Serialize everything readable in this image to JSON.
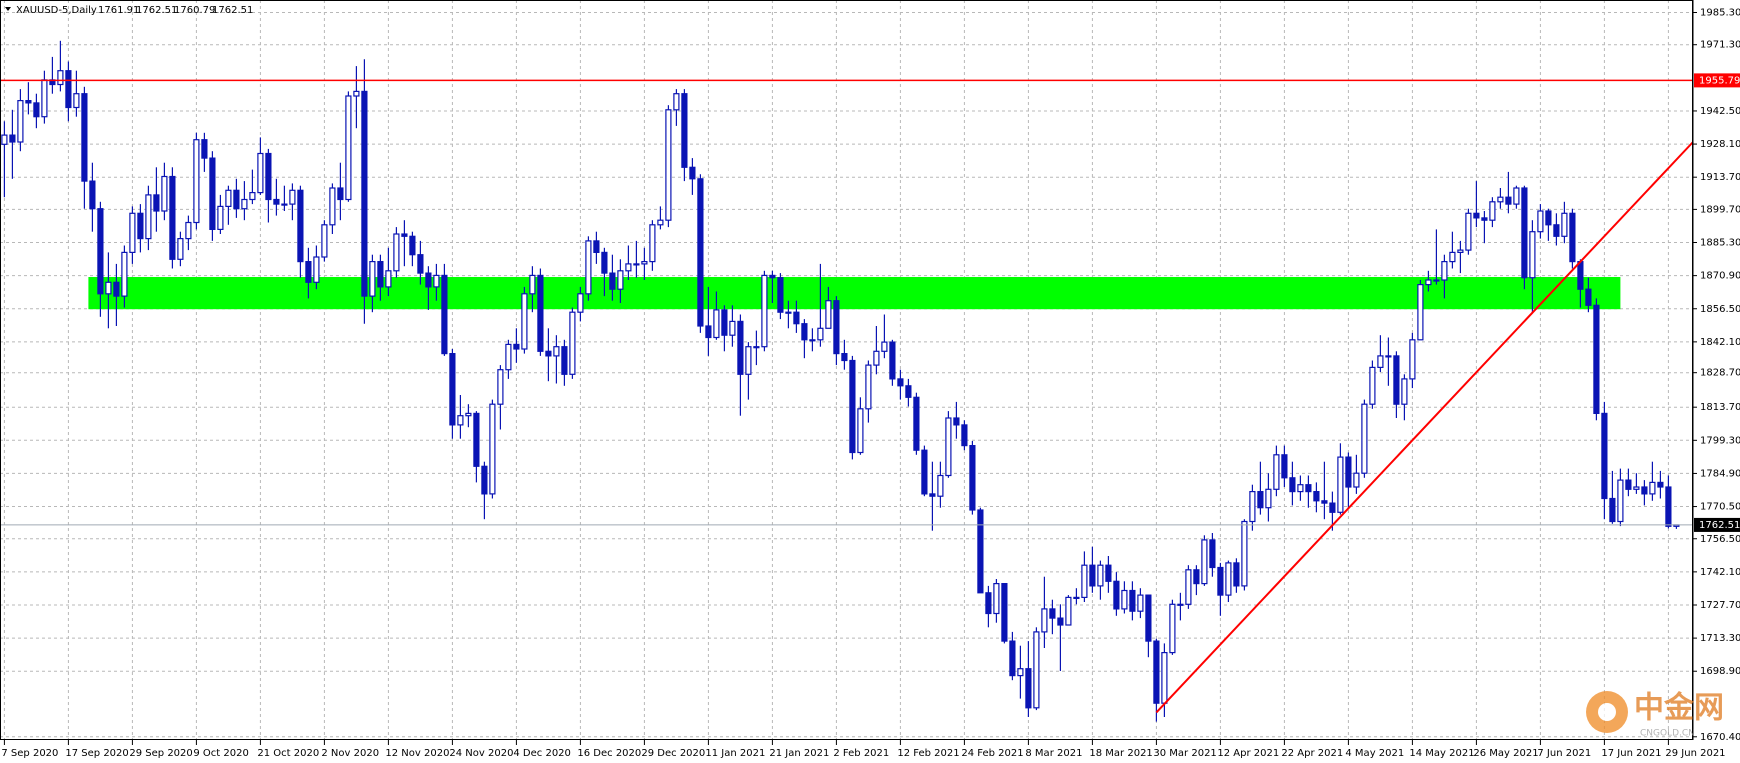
{
  "chart_data": {
    "type": "candlestick",
    "title": "XAUUSD-5,Daily",
    "categories": [
      "7 Sep 2020",
      null,
      null,
      null,
      null,
      null,
      null,
      null,
      "17 Sep 2020",
      null,
      null,
      null,
      null,
      null,
      null,
      null,
      "29 Sep 2020",
      null,
      null,
      null,
      null,
      null,
      null,
      null,
      "9 Oct 2020",
      null,
      null,
      null,
      null,
      null,
      null,
      null,
      "21 Oct 2020",
      null,
      null,
      null,
      null,
      null,
      null,
      null,
      "2 Nov 2020",
      null,
      null,
      null,
      null,
      null,
      null,
      null,
      "12 Nov 2020",
      null,
      null,
      null,
      null,
      null,
      null,
      null,
      "24 Nov 2020",
      null,
      null,
      null,
      null,
      null,
      null,
      null,
      "4 Dec 2020",
      null,
      null,
      null,
      null,
      null,
      null,
      null,
      "16 Dec 2020",
      null,
      null,
      null,
      null,
      null,
      null,
      null,
      "29 Dec 2020",
      null,
      null,
      null,
      null,
      null,
      null,
      null,
      "11 Jan 2021",
      null,
      null,
      null,
      null,
      null,
      null,
      null,
      "21 Jan 2021",
      null,
      null,
      null,
      null,
      null,
      null,
      null,
      "2 Feb 2021",
      null,
      null,
      null,
      null,
      null,
      null,
      null,
      "12 Feb 2021",
      null,
      null,
      null,
      null,
      null,
      null,
      null,
      "24 Feb 2021",
      null,
      null,
      null,
      null,
      null,
      null,
      null,
      "8 Mar 2021",
      null,
      null,
      null,
      null,
      null,
      null,
      null,
      "18 Mar 2021",
      null,
      null,
      null,
      null,
      null,
      null,
      null,
      "30 Mar 2021",
      null,
      null,
      null,
      null,
      null,
      null,
      null,
      "12 Apr 2021",
      null,
      null,
      null,
      null,
      null,
      null,
      null,
      "22 Apr 2021",
      null,
      null,
      null,
      null,
      null,
      null,
      null,
      "4 May 2021",
      null,
      null,
      null,
      null,
      null,
      null,
      null,
      "14 May 2021",
      null,
      null,
      null,
      null,
      null,
      null,
      null,
      "26 May 2021",
      null,
      null,
      null,
      null,
      null,
      null,
      null,
      "7 Jun 2021",
      null,
      null,
      null,
      null,
      null,
      null,
      null,
      "17 Jun 2021",
      null,
      null,
      null,
      null,
      null,
      null,
      null,
      "29 Jun 2021",
      null
    ],
    "open": [
      1928,
      1932,
      1929,
      1947,
      1946,
      1940,
      1956,
      1954,
      1960,
      1944,
      1950,
      1912,
      1900,
      1863,
      1868,
      1862,
      1881,
      1898,
      1887,
      1906,
      1899,
      1914,
      1878,
      1887,
      1894,
      1930,
      1922,
      1891,
      1901,
      1908,
      1900,
      1904,
      1907,
      1924,
      1904,
      1902,
      1902,
      1908,
      1877,
      1868,
      1879,
      1893,
      1909,
      1904,
      1949,
      1951,
      1862,
      1877,
      1866,
      1873,
      1889,
      1888,
      1880,
      1872,
      1866,
      1871,
      1837,
      1806,
      1810,
      1811,
      1788,
      1776,
      1815,
      1830,
      1841,
      1839,
      1863,
      1871,
      1838,
      1836,
      1840,
      1828,
      1855,
      1863,
      1886,
      1881,
      1872,
      1865,
      1873,
      1876,
      1876,
      1877,
      1893,
      1895,
      1943,
      1950,
      1918,
      1913,
      1849,
      1844,
      1856,
      1845,
      1851,
      1828,
      1840,
      1840,
      1871,
      1870,
      1855,
      1855,
      1850,
      1843,
      1843,
      1848,
      1860,
      1837,
      1834,
      1794,
      1813,
      1832,
      1838,
      1842,
      1826,
      1823,
      1818,
      1795,
      1776,
      1775,
      1784,
      1809,
      1806,
      1797,
      1769,
      1733,
      1724,
      1737,
      1712,
      1697,
      1700,
      1683,
      1716,
      1726,
      1722,
      1719,
      1731,
      1731,
      1745,
      1736,
      1745,
      1738,
      1726,
      1734,
      1725,
      1732,
      1712,
      1685,
      1707,
      1728,
      1728,
      1743,
      1737,
      1756,
      1744,
      1732,
      1746,
      1736,
      1764,
      1777,
      1770,
      1778,
      1793,
      1783,
      1777,
      1780,
      1777,
      1773,
      1772,
      1768,
      1792,
      1779,
      1785,
      1815,
      1831,
      1836,
      1836,
      1815,
      1826,
      1843,
      1867,
      1869,
      1869,
      1877,
      1881,
      1882,
      1898,
      1896,
      1895,
      1903,
      1905,
      1902,
      1909,
      1870,
      1890,
      1899,
      1893,
      1888,
      1898,
      1877,
      1865,
      1858,
      1811,
      1774,
      1764,
      1782,
      1778,
      1779,
      1776,
      1781,
      1779,
      1761.91
    ],
    "high": [
      1938,
      1943,
      1952,
      1955,
      1950,
      1960,
      1966,
      1973,
      1964,
      1960,
      1953,
      1920,
      1903,
      1881,
      1876,
      1884,
      1901,
      1902,
      1910,
      1918,
      1920,
      1918,
      1890,
      1897,
      1933,
      1933,
      1925,
      1906,
      1910,
      1913,
      1912,
      1917,
      1931,
      1926,
      1913,
      1910,
      1911,
      1910,
      1883,
      1884,
      1895,
      1911,
      1920,
      1951,
      1962,
      1965,
      1880,
      1880,
      1883,
      1892,
      1895,
      1890,
      1886,
      1875,
      1876,
      1876,
      1839,
      1819,
      1815,
      1812,
      1790,
      1817,
      1832,
      1843,
      1848,
      1866,
      1875,
      1874,
      1848,
      1845,
      1843,
      1857,
      1866,
      1888,
      1890,
      1883,
      1880,
      1878,
      1884,
      1886,
      1883,
      1895,
      1901,
      1945,
      1952,
      1952,
      1922,
      1915,
      1866,
      1864,
      1858,
      1858,
      1854,
      1842,
      1847,
      1873,
      1873,
      1872,
      1860,
      1860,
      1852,
      1848,
      1876,
      1866,
      1862,
      1843,
      1836,
      1818,
      1834,
      1849,
      1854,
      1843,
      1830,
      1826,
      1820,
      1797,
      1790,
      1790,
      1812,
      1816,
      1808,
      1799,
      1770,
      1736,
      1739,
      1737,
      1716,
      1710,
      1712,
      1718,
      1740,
      1730,
      1728,
      1732,
      1735,
      1751,
      1753,
      1747,
      1749,
      1742,
      1738,
      1738,
      1735,
      1732,
      1713,
      1711,
      1730,
      1733,
      1745,
      1745,
      1758,
      1759,
      1746,
      1747,
      1748,
      1765,
      1780,
      1790,
      1785,
      1797,
      1797,
      1790,
      1784,
      1784,
      1781,
      1790,
      1777,
      1798,
      1794,
      1793,
      1817,
      1834,
      1845,
      1844,
      1838,
      1828,
      1846,
      1869,
      1873,
      1891,
      1880,
      1890,
      1886,
      1900,
      1912,
      1899,
      1905,
      1909,
      1916,
      1910,
      1910,
      1895,
      1902,
      1900,
      1898,
      1903,
      1900,
      1878,
      1870,
      1861,
      1816,
      1786,
      1787,
      1787,
      1785,
      1782,
      1790,
      1786,
      1784,
      1762.51
    ],
    "low": [
      1905,
      1913,
      1925,
      1941,
      1935,
      1937,
      1950,
      1951,
      1938,
      1940,
      1900,
      1890,
      1853,
      1848,
      1849,
      1857,
      1876,
      1881,
      1882,
      1890,
      1895,
      1874,
      1875,
      1882,
      1891,
      1916,
      1886,
      1889,
      1893,
      1896,
      1895,
      1902,
      1906,
      1894,
      1897,
      1899,
      1895,
      1870,
      1861,
      1865,
      1877,
      1889,
      1895,
      1903,
      1935,
      1850,
      1855,
      1860,
      1862,
      1870,
      1875,
      1875,
      1867,
      1856,
      1860,
      1836,
      1800,
      1800,
      1805,
      1781,
      1765,
      1774,
      1804,
      1826,
      1833,
      1837,
      1855,
      1836,
      1825,
      1824,
      1823,
      1826,
      1851,
      1860,
      1876,
      1862,
      1860,
      1859,
      1869,
      1870,
      1869,
      1873,
      1891,
      1892,
      1936,
      1912,
      1906,
      1846,
      1836,
      1843,
      1838,
      1840,
      1810,
      1817,
      1832,
      1838,
      1859,
      1852,
      1848,
      1846,
      1835,
      1838,
      1840,
      1848,
      1832,
      1830,
      1791,
      1793,
      1807,
      1828,
      1835,
      1823,
      1817,
      1814,
      1793,
      1775,
      1760,
      1770,
      1783,
      1800,
      1795,
      1767,
      1733,
      1718,
      1720,
      1711,
      1695,
      1687,
      1679,
      1682,
      1709,
      1715,
      1699,
      1720,
      1728,
      1729,
      1733,
      1730,
      1733,
      1723,
      1724,
      1721,
      1722,
      1705,
      1677,
      1679,
      1706,
      1721,
      1726,
      1732,
      1736,
      1740,
      1723,
      1729,
      1733,
      1734,
      1760,
      1767,
      1764,
      1775,
      1779,
      1771,
      1773,
      1770,
      1768,
      1765,
      1760,
      1767,
      1770,
      1776,
      1783,
      1813,
      1829,
      1823,
      1809,
      1808,
      1822,
      1843,
      1864,
      1867,
      1861,
      1874,
      1872,
      1880,
      1892,
      1885,
      1892,
      1900,
      1898,
      1900,
      1865,
      1855,
      1887,
      1886,
      1884,
      1885,
      1874,
      1857,
      1855,
      1808,
      1765,
      1763,
      1762,
      1775,
      1776,
      1771,
      1773,
      1774,
      1761,
      1760.79
    ],
    "close": [
      1932,
      1929,
      1947,
      1946,
      1940,
      1956,
      1954,
      1960,
      1944,
      1950,
      1912,
      1900,
      1863,
      1868,
      1862,
      1881,
      1898,
      1887,
      1906,
      1899,
      1914,
      1878,
      1887,
      1894,
      1930,
      1922,
      1891,
      1901,
      1908,
      1900,
      1904,
      1907,
      1924,
      1904,
      1902,
      1902,
      1908,
      1877,
      1868,
      1879,
      1893,
      1909,
      1904,
      1949,
      1951,
      1862,
      1877,
      1866,
      1873,
      1889,
      1888,
      1880,
      1872,
      1866,
      1871,
      1837,
      1806,
      1810,
      1811,
      1788,
      1776,
      1815,
      1830,
      1841,
      1839,
      1863,
      1871,
      1838,
      1836,
      1840,
      1828,
      1855,
      1863,
      1886,
      1881,
      1872,
      1865,
      1873,
      1876,
      1876,
      1877,
      1893,
      1895,
      1943,
      1950,
      1918,
      1913,
      1849,
      1844,
      1856,
      1845,
      1851,
      1828,
      1840,
      1840,
      1871,
      1870,
      1855,
      1855,
      1850,
      1843,
      1843,
      1848,
      1860,
      1837,
      1834,
      1794,
      1813,
      1832,
      1838,
      1842,
      1826,
      1823,
      1818,
      1795,
      1776,
      1775,
      1784,
      1809,
      1806,
      1797,
      1769,
      1733,
      1724,
      1737,
      1712,
      1697,
      1700,
      1683,
      1716,
      1726,
      1722,
      1719,
      1731,
      1731,
      1745,
      1736,
      1745,
      1738,
      1726,
      1734,
      1725,
      1732,
      1712,
      1685,
      1707,
      1728,
      1728,
      1743,
      1737,
      1756,
      1744,
      1732,
      1746,
      1736,
      1764,
      1777,
      1770,
      1778,
      1793,
      1783,
      1777,
      1780,
      1777,
      1773,
      1772,
      1768,
      1792,
      1779,
      1785,
      1815,
      1831,
      1836,
      1836,
      1815,
      1826,
      1843,
      1867,
      1869,
      1869,
      1877,
      1881,
      1882,
      1898,
      1896,
      1895,
      1903,
      1905,
      1902,
      1909,
      1870,
      1890,
      1899,
      1893,
      1888,
      1898,
      1877,
      1865,
      1858,
      1811,
      1774,
      1764,
      1782,
      1778,
      1779,
      1776,
      1781,
      1779,
      1761.91,
      1762.51
    ],
    "color": "#0a14b4",
    "up_fill": "#ffffff",
    "ylim": [
      1669,
      1989
    ],
    "yticks": [
      {
        "value": 1985.3,
        "label": "1985.30"
      },
      {
        "value": 1971.3,
        "label": "1971.30"
      },
      {
        "value": 1942.5,
        "label": "1942.50"
      },
      {
        "value": 1928.1,
        "label": "1928.10"
      },
      {
        "value": 1913.7,
        "label": "1913.70"
      },
      {
        "value": 1899.7,
        "label": "1899.70"
      },
      {
        "value": 1885.3,
        "label": "1885.30"
      },
      {
        "value": 1870.9,
        "label": "1870.90"
      },
      {
        "value": 1856.5,
        "label": "1856.50"
      },
      {
        "value": 1842.1,
        "label": "1842.10"
      },
      {
        "value": 1828.7,
        "label": "1828.70"
      },
      {
        "value": 1813.7,
        "label": "1813.70"
      },
      {
        "value": 1799.3,
        "label": "1799.30"
      },
      {
        "value": 1784.9,
        "label": "1784.90"
      },
      {
        "value": 1770.5,
        "label": "1770.50"
      },
      {
        "value": 1756.5,
        "label": "1756.50"
      },
      {
        "value": 1742.1,
        "label": "1742.10"
      },
      {
        "value": 1727.7,
        "label": "1727.70"
      },
      {
        "value": 1713.3,
        "label": "1713.30"
      },
      {
        "value": 1698.9,
        "label": "1698.90"
      },
      {
        "value": 1670.4,
        "label": "1670.40"
      }
    ],
    "grid": true,
    "annotations": [
      {
        "type": "hline",
        "value": 1955.79,
        "color": "#ff0000"
      },
      {
        "type": "price_line",
        "value": 1762.51,
        "color": "#a0aab4"
      },
      {
        "type": "zone",
        "from": 10.5,
        "to": 202,
        "low": 1856.3,
        "high": 1870.3,
        "color": "#00ff00"
      },
      {
        "type": "trendline",
        "from": [
          144,
          1681
        ],
        "to": [
          211.5,
          1929
        ],
        "color": "#ff0000"
      }
    ],
    "watermark": {
      "text": "中金网",
      "subtext": "CNGOLD.CN"
    }
  }
}
